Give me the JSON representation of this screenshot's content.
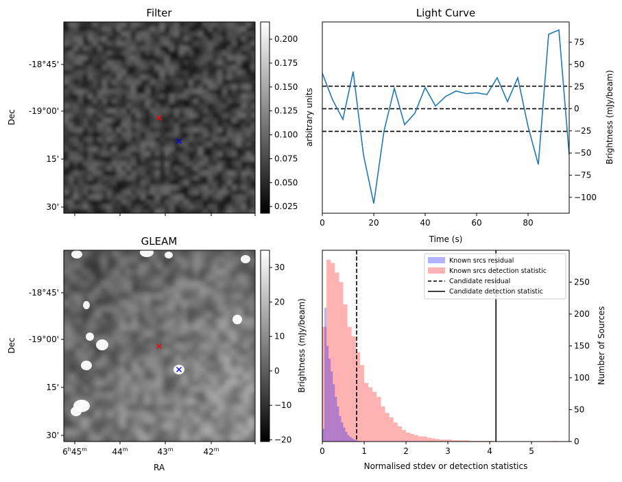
{
  "chart_data": [
    {
      "type": "heatmap",
      "title": "Filter",
      "ylabel": "Dec",
      "y_ticks": [
        "-18°45'",
        "-19°00'",
        "15'",
        "30'"
      ],
      "colorbar": {
        "label": "arbitrary units",
        "range": [
          0.018,
          0.218
        ],
        "ticks": [
          0.025,
          0.05,
          0.075,
          0.1,
          0.125,
          0.15,
          0.175,
          0.2
        ],
        "tick_labels": [
          "0.025",
          "0.050",
          "0.075",
          "0.100",
          "0.125",
          "0.150",
          "0.175",
          "0.200"
        ]
      },
      "markers": [
        {
          "color": "#ff0000",
          "symbol": "x"
        },
        {
          "color": "#0000ff",
          "symbol": "x"
        }
      ]
    },
    {
      "type": "line",
      "title": "Light Curve",
      "xlabel": "Time (s)",
      "ylabel": "Brightness (mJy/beam)",
      "xlim": [
        0,
        96
      ],
      "ylim": [
        -118,
        98
      ],
      "x_ticks": [
        0,
        20,
        40,
        60,
        80
      ],
      "y_ticks": [
        -100,
        -75,
        -50,
        -25,
        0,
        25,
        50,
        75
      ],
      "color": "#1f77b4",
      "x": [
        0,
        4,
        8,
        12,
        16,
        20,
        24,
        28,
        32,
        36,
        40,
        44,
        48,
        52,
        56,
        60,
        64,
        68,
        72,
        76,
        80,
        84,
        88,
        92,
        96
      ],
      "y": [
        40,
        10,
        -12,
        42,
        -52,
        -107,
        -25,
        23,
        -18,
        -5,
        24,
        3,
        14,
        20,
        17,
        18,
        16,
        35,
        8,
        35,
        -20,
        -63,
        84,
        89,
        -52
      ],
      "hlines": [
        25.5,
        0,
        -25.5
      ]
    },
    {
      "type": "heatmap",
      "title": "GLEAM",
      "xlabel": "RA",
      "ylabel": "Dec",
      "x_ticks": [
        "6h45m",
        "44m",
        "43m",
        "42m"
      ],
      "y_ticks": [
        "-18°45'",
        "-19°00'",
        "15'",
        "30'"
      ],
      "colorbar": {
        "label": "Brightness (mJy/beam)",
        "range": [
          -20.5,
          35
        ],
        "ticks": [
          -20,
          -10,
          0,
          10,
          20,
          30
        ],
        "tick_labels": [
          "−20",
          "−10",
          "0",
          "10",
          "20",
          "30"
        ]
      },
      "markers": [
        {
          "color": "#ff0000",
          "symbol": "x"
        },
        {
          "color": "#0000ff",
          "symbol": "x"
        }
      ]
    },
    {
      "type": "bar",
      "title": "",
      "xlabel": "Normalised stdev or detection statistics",
      "ylabel": "Number of Sources",
      "xlim": [
        0,
        5.9
      ],
      "ylim": [
        0,
        300
      ],
      "x_ticks": [
        0,
        1,
        2,
        3,
        4,
        5
      ],
      "y_ticks": [
        0,
        50,
        100,
        150,
        200,
        250
      ],
      "bin_width": 0.1,
      "series": [
        {
          "name": "Known srcs residual",
          "color": "#0000ff",
          "alpha": 0.3,
          "bin_width": 0.05,
          "x": [
            0.0,
            0.05,
            0.1,
            0.15,
            0.2,
            0.25,
            0.3,
            0.35,
            0.4,
            0.45,
            0.5,
            0.55,
            0.6,
            0.65,
            0.7,
            0.75,
            0.8,
            0.85
          ],
          "values": [
            20,
            210,
            150,
            130,
            110,
            90,
            70,
            55,
            40,
            30,
            22,
            15,
            10,
            7,
            5,
            3,
            2,
            1
          ]
        },
        {
          "name": "Known srcs detection statistic",
          "color": "#ff0000",
          "alpha": 0.3,
          "bin_width": 0.1,
          "x": [
            0.0,
            0.1,
            0.2,
            0.3,
            0.4,
            0.5,
            0.6,
            0.7,
            0.8,
            0.9,
            1.0,
            1.1,
            1.2,
            1.3,
            1.4,
            1.5,
            1.6,
            1.7,
            1.8,
            1.9,
            2.0,
            2.1,
            2.2,
            2.3,
            2.4,
            2.5,
            2.6,
            2.7,
            2.8,
            2.9,
            3.0,
            3.1,
            3.2,
            3.3,
            3.4,
            3.5,
            3.6,
            3.7,
            3.8,
            3.9,
            4.0,
            4.1,
            4.2,
            4.3,
            4.4,
            4.5,
            4.6,
            4.7,
            4.8,
            4.9,
            5.0,
            5.1,
            5.2,
            5.3,
            5.4,
            5.5,
            5.6,
            5.7,
            5.8
          ],
          "values": [
            180,
            285,
            280,
            265,
            250,
            215,
            180,
            165,
            140,
            120,
            92,
            85,
            78,
            70,
            55,
            45,
            38,
            30,
            24,
            18,
            14,
            12,
            10,
            8,
            8,
            6,
            5,
            4,
            3,
            3,
            3,
            2,
            2,
            2,
            2,
            1,
            1,
            1,
            1,
            1,
            1,
            0,
            0,
            0,
            0,
            0,
            0,
            0,
            0,
            0,
            0,
            0,
            0,
            0,
            0,
            1,
            0,
            0,
            0
          ]
        }
      ],
      "vlines": [
        {
          "name": "Candidate residual",
          "x": 0.82,
          "style": "dashed",
          "color": "#000000"
        },
        {
          "name": "Candidate detection statistic",
          "x": 4.15,
          "style": "solid",
          "color": "#000000"
        }
      ],
      "legend_position": "top-right"
    }
  ]
}
